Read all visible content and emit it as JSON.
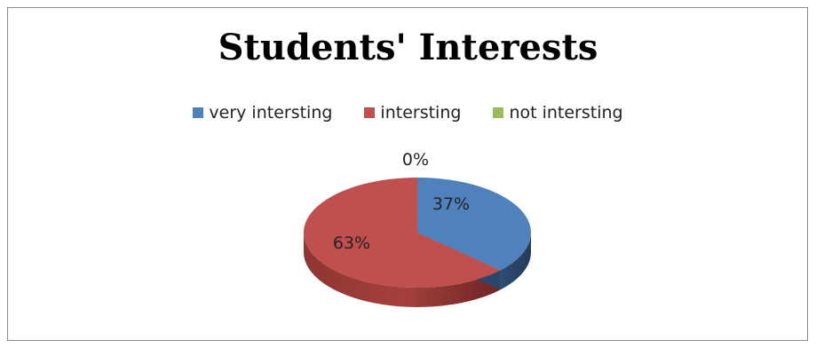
{
  "chart_data": {
    "type": "pie",
    "title": "Students' Interests",
    "categories": [
      "very intersting",
      "intersting",
      "not intersting"
    ],
    "values": [
      37,
      63,
      0
    ],
    "value_labels": [
      "37%",
      "63%",
      "0%"
    ],
    "colors": [
      "#4f81bd",
      "#c0504d",
      "#9bbb59"
    ],
    "legend_position": "top",
    "style": "3d"
  }
}
